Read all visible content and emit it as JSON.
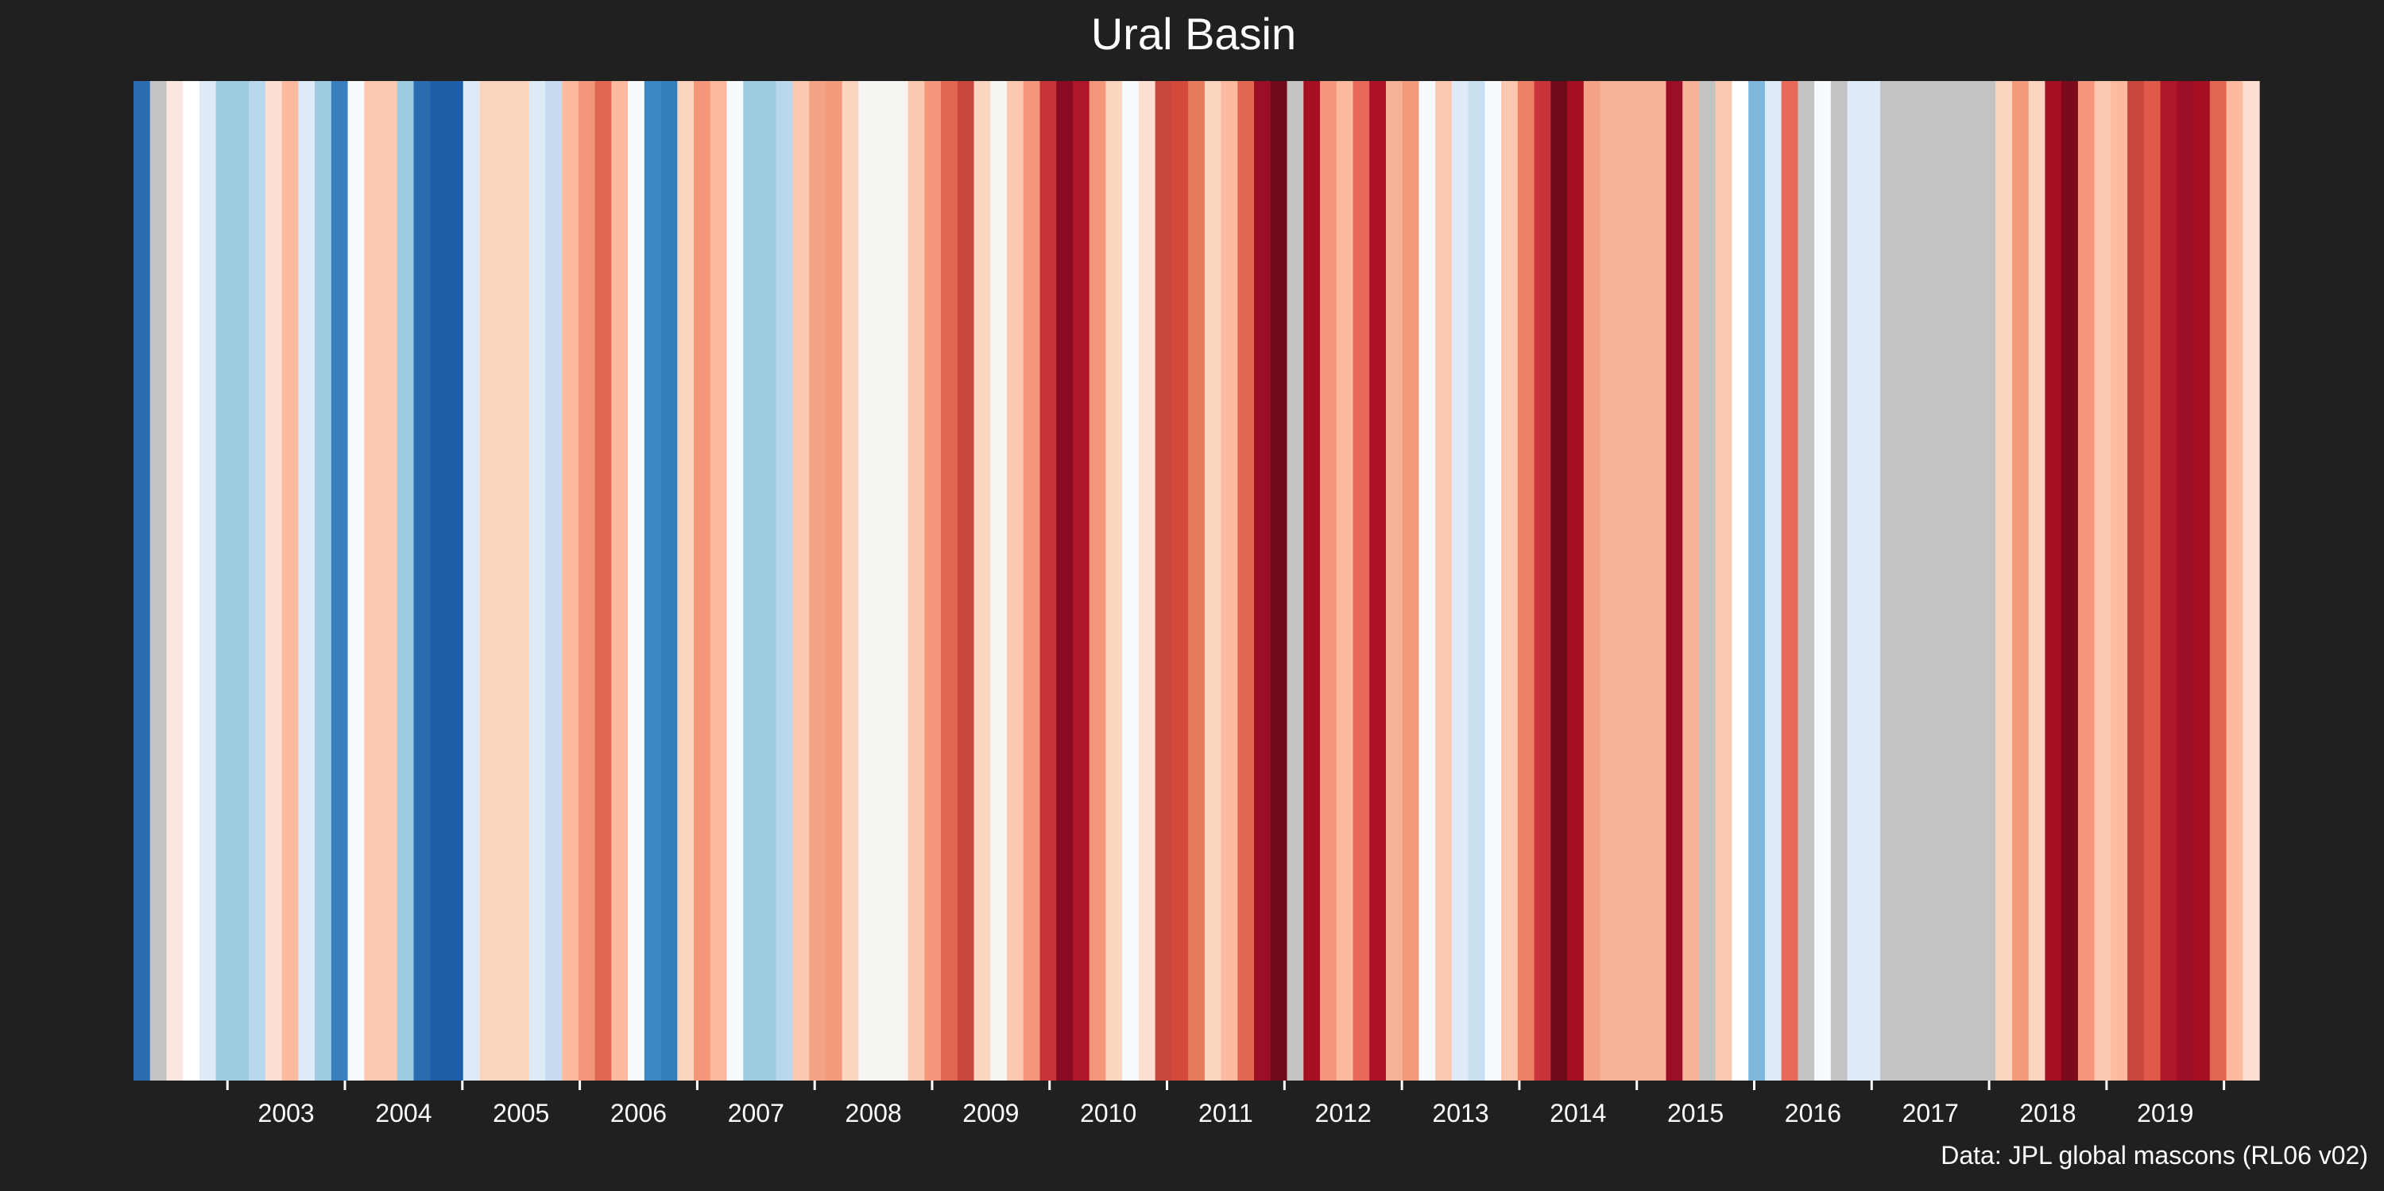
{
  "chart_data": {
    "type": "heatmap",
    "title": "Ural Basin",
    "caption": "Data: JPL global mascons (RL06 v02)",
    "x_ticks": [
      "2003",
      "2004",
      "2005",
      "2006",
      "2007",
      "2008",
      "2009",
      "2010",
      "2011",
      "2012",
      "2013",
      "2014",
      "2015",
      "2016",
      "2017",
      "2018",
      "2019"
    ],
    "x_start": 2002.2,
    "x_end": 2020.3,
    "grid": false,
    "legend": "none",
    "colors": {
      "background": "#202020",
      "missing": "#c3c3c3",
      "scale": [
        "#08306b",
        "#08519c",
        "#2171b5",
        "#4292c6",
        "#6baed6",
        "#9ecae1",
        "#c6dbef",
        "#deebf7",
        "#f7fbff",
        "#fff5f0",
        "#fee0d2",
        "#fcbba1",
        "#fc9272",
        "#fb6a4a",
        "#ef3b2c",
        "#cb181d",
        "#a50f15",
        "#67000d"
      ]
    },
    "stripes": [
      [
        "#2c6db0",
        1
      ],
      [
        "#c3c3c3",
        1
      ],
      [
        "#fbe7df",
        1
      ],
      [
        "#ffffff",
        1
      ],
      [
        "#deebf7",
        1
      ],
      [
        "#9ecae1",
        2
      ],
      [
        "#b9d8ec",
        1
      ],
      [
        "#fee0d2",
        1
      ],
      [
        "#fcbba1",
        1
      ],
      [
        "#deebf7",
        1
      ],
      [
        "#9ecae1",
        1
      ],
      [
        "#3a7fbd",
        1
      ],
      [
        "#f7fbff",
        1
      ],
      [
        "#fcc8b0",
        2
      ],
      [
        "#9ecae1",
        1
      ],
      [
        "#2c6db0",
        1
      ],
      [
        "#1f5ea8",
        2
      ],
      [
        "#deebf7",
        1
      ],
      [
        "#fcd5c1",
        3
      ],
      [
        "#deebf7",
        1
      ],
      [
        "#c6dbef",
        1
      ],
      [
        "#fcbba1",
        1
      ],
      [
        "#f4967a",
        1
      ],
      [
        "#e06650",
        1
      ],
      [
        "#fcbba1",
        1
      ],
      [
        "#f7fbff",
        1
      ],
      [
        "#3d88c2",
        1
      ],
      [
        "#3380bd",
        1
      ],
      [
        "#fcd5c1",
        1
      ],
      [
        "#f4967a",
        1
      ],
      [
        "#fcbba1",
        1
      ],
      [
        "#f7fbff",
        1
      ],
      [
        "#9ecae1",
        2
      ],
      [
        "#b9d8ec",
        1
      ],
      [
        "#fcc8b0",
        1
      ],
      [
        "#f4a285",
        1
      ],
      [
        "#f39a7b",
        1
      ],
      [
        "#fcd5c1",
        1
      ],
      [
        "#f7f5f2",
        3
      ],
      [
        "#fcc8b0",
        1
      ],
      [
        "#f4967a",
        1
      ],
      [
        "#e06650",
        1
      ],
      [
        "#c9473d",
        1
      ],
      [
        "#fcd5c1",
        1
      ],
      [
        "#f7f5f2",
        1
      ],
      [
        "#fcc8b0",
        1
      ],
      [
        "#f4967a",
        1
      ],
      [
        "#c9343a",
        1
      ],
      [
        "#8a0a21",
        1
      ],
      [
        "#b0162a",
        1
      ],
      [
        "#f4967a",
        1
      ],
      [
        "#fcd5c1",
        1
      ],
      [
        "#f7fbff",
        1
      ],
      [
        "#fee0d2",
        1
      ],
      [
        "#c9473d",
        1
      ],
      [
        "#d44a3a",
        1
      ],
      [
        "#e87a5d",
        1
      ],
      [
        "#fcd5c1",
        1
      ],
      [
        "#fcbba1",
        1
      ],
      [
        "#e06650",
        1
      ],
      [
        "#9a0e26",
        1
      ],
      [
        "#6e0a1a",
        1
      ],
      [
        "#c3c3c3",
        1
      ],
      [
        "#a50f22",
        1
      ],
      [
        "#f4967a",
        1
      ],
      [
        "#fcbba1",
        1
      ],
      [
        "#e6695a",
        1
      ],
      [
        "#ad1226",
        1
      ],
      [
        "#f7b298",
        1
      ],
      [
        "#f39a7b",
        1
      ],
      [
        "#f7fbff",
        1
      ],
      [
        "#fcc8b0",
        1
      ],
      [
        "#deebf7",
        1
      ],
      [
        "#c8e0ef",
        1
      ],
      [
        "#f7fbff",
        1
      ],
      [
        "#fcc8b0",
        1
      ],
      [
        "#ed7f64",
        1
      ],
      [
        "#c9343a",
        1
      ],
      [
        "#6e0a1a",
        1
      ],
      [
        "#a50f22",
        1
      ],
      [
        "#f4a285",
        1
      ],
      [
        "#f7b298",
        4
      ],
      [
        "#9a0e26",
        1
      ],
      [
        "#f7b298",
        1
      ],
      [
        "#c3c3c3",
        1
      ],
      [
        "#fcc8b0",
        1
      ],
      [
        "#ffffff",
        1
      ],
      [
        "#7fb6db",
        1
      ],
      [
        "#deebf7",
        1
      ],
      [
        "#e6695a",
        1
      ],
      [
        "#c3c3c3",
        1
      ],
      [
        "#f7fbff",
        1
      ],
      [
        "#c3c3c3",
        1
      ],
      [
        "#deebf7",
        2
      ],
      [
        "#c3c3c3",
        7
      ],
      [
        "#fcd5c1",
        1
      ],
      [
        "#f39a7b",
        1
      ],
      [
        "#fcd5c1",
        1
      ],
      [
        "#a50f22",
        1
      ],
      [
        "#7a0a1c",
        1
      ],
      [
        "#f4967a",
        1
      ],
      [
        "#fcc8b0",
        1
      ],
      [
        "#fcbba1",
        1
      ],
      [
        "#c9473d",
        1
      ],
      [
        "#dd5a48",
        1
      ],
      [
        "#b0162a",
        1
      ],
      [
        "#9a0e26",
        1
      ],
      [
        "#a50f22",
        1
      ],
      [
        "#e06650",
        1
      ],
      [
        "#fcbba1",
        1
      ],
      [
        "#fee0d2",
        1
      ]
    ]
  }
}
